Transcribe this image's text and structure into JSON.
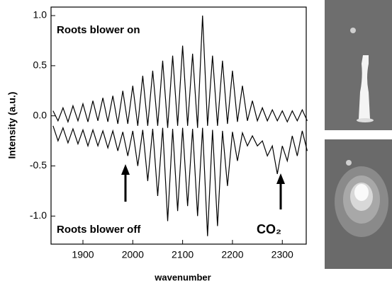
{
  "chart_data": {
    "type": "line",
    "xlabel": "wavenumber",
    "ylabel": "Intensity (a.u.)",
    "annotation": "CO₂",
    "x": [
      1840,
      1850,
      1860,
      1870,
      1880,
      1890,
      1900,
      1910,
      1920,
      1930,
      1940,
      1950,
      1960,
      1970,
      1980,
      1990,
      2000,
      2010,
      2020,
      2030,
      2040,
      2050,
      2060,
      2070,
      2080,
      2090,
      2100,
      2110,
      2120,
      2130,
      2140,
      2150,
      2160,
      2170,
      2180,
      2190,
      2200,
      2210,
      2220,
      2230,
      2240,
      2250,
      2260,
      2270,
      2280,
      2290,
      2300,
      2310,
      2320,
      2330,
      2340,
      2350
    ],
    "series": [
      {
        "name": "Roots blower on",
        "color": "#000000",
        "values": [
          0.05,
          -0.05,
          0.08,
          -0.06,
          0.1,
          -0.05,
          0.12,
          -0.06,
          0.15,
          -0.05,
          0.18,
          -0.06,
          0.2,
          -0.08,
          0.25,
          -0.08,
          0.3,
          -0.1,
          0.4,
          -0.1,
          0.45,
          -0.1,
          0.55,
          -0.12,
          0.6,
          -0.1,
          0.7,
          -0.1,
          0.62,
          -0.12,
          1.0,
          -0.1,
          0.6,
          -0.1,
          0.55,
          -0.08,
          0.45,
          -0.06,
          0.3,
          -0.05,
          0.15,
          -0.05,
          0.08,
          -0.05,
          0.06,
          -0.05,
          0.05,
          -0.06,
          0.05,
          -0.05,
          0.06,
          -0.05
        ]
      },
      {
        "name": "Roots blower off",
        "color": "#000000",
        "values": [
          -0.1,
          -0.25,
          -0.12,
          -0.27,
          -0.13,
          -0.28,
          -0.14,
          -0.3,
          -0.14,
          -0.3,
          -0.15,
          -0.32,
          -0.15,
          -0.35,
          -0.16,
          -0.4,
          -0.15,
          -0.5,
          -0.14,
          -0.65,
          -0.13,
          -0.8,
          -0.12,
          -1.05,
          -0.13,
          -0.95,
          -0.12,
          -0.9,
          -0.13,
          -1.0,
          -0.12,
          -1.2,
          -0.14,
          -1.1,
          -0.15,
          -0.7,
          -0.16,
          -0.45,
          -0.17,
          -0.3,
          -0.2,
          -0.3,
          -0.25,
          -0.4,
          -0.3,
          -0.58,
          -0.3,
          -0.45,
          -0.2,
          -0.4,
          -0.15,
          -0.35
        ]
      }
    ],
    "xlim": [
      1836,
      2348
    ],
    "ylim": [
      -1.28,
      1.085
    ],
    "xticks": [
      1900,
      2000,
      2100,
      2200,
      2300
    ],
    "yticks": [
      {
        "value": -1,
        "label": "-1.0"
      },
      -0.5,
      {
        "value": 0,
        "label": "0.0"
      },
      0.5,
      {
        "value": 1,
        "label": "1.0"
      }
    ]
  }
}
